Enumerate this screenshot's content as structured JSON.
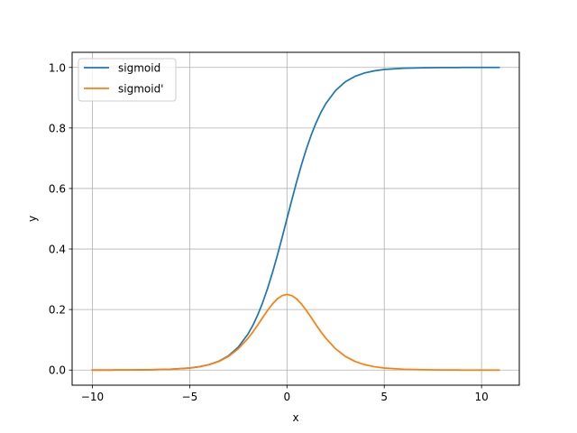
{
  "chart_data": {
    "type": "line",
    "title": "",
    "xlabel": "x",
    "ylabel": "y",
    "xlim": [
      -11.04,
      11.94
    ],
    "ylim": [
      -0.05,
      1.05
    ],
    "grid": true,
    "legend_position": "top-left",
    "x_ticks": [
      {
        "value": -10,
        "label": "−10"
      },
      {
        "value": -5,
        "label": "−5"
      },
      {
        "value": 0,
        "label": "0"
      },
      {
        "value": 5,
        "label": "5"
      },
      {
        "value": 10,
        "label": "10"
      }
    ],
    "y_ticks": [
      {
        "value": 0.0,
        "label": "0.0"
      },
      {
        "value": 0.2,
        "label": "0.2"
      },
      {
        "value": 0.4,
        "label": "0.4"
      },
      {
        "value": 0.6,
        "label": "0.6"
      },
      {
        "value": 0.8,
        "label": "0.8"
      },
      {
        "value": 1.0,
        "label": "1.0"
      }
    ],
    "x": [
      -10,
      -9,
      -8,
      -7,
      -6,
      -5,
      -4.5,
      -4,
      -3.5,
      -3,
      -2.5,
      -2,
      -1.75,
      -1.5,
      -1.25,
      -1,
      -0.75,
      -0.5,
      -0.25,
      0,
      0.25,
      0.5,
      0.75,
      1,
      1.25,
      1.5,
      1.75,
      2,
      2.5,
      3,
      3.5,
      4,
      4.5,
      5,
      6,
      7,
      8,
      9,
      10,
      10.9
    ],
    "series": [
      {
        "name": "sigmoid",
        "color": "#1f77b4",
        "values": [
          0.0,
          0.0001,
          0.0003,
          0.0009,
          0.0025,
          0.0067,
          0.011,
          0.018,
          0.0293,
          0.0474,
          0.0759,
          0.1192,
          0.148,
          0.1824,
          0.2227,
          0.2689,
          0.3208,
          0.3775,
          0.4378,
          0.5,
          0.5622,
          0.6225,
          0.6792,
          0.7311,
          0.7773,
          0.8176,
          0.852,
          0.8808,
          0.9241,
          0.9526,
          0.9707,
          0.982,
          0.989,
          0.9933,
          0.9975,
          0.9991,
          0.9997,
          0.9999,
          1.0,
          1.0
        ]
      },
      {
        "name": "sigmoid'",
        "color": "#ff7f0e",
        "values": [
          0.0,
          0.0001,
          0.0003,
          0.0009,
          0.0025,
          0.0066,
          0.0109,
          0.0177,
          0.0285,
          0.0452,
          0.0701,
          0.105,
          0.1261,
          0.1491,
          0.1731,
          0.1966,
          0.2179,
          0.235,
          0.2461,
          0.25,
          0.2461,
          0.235,
          0.2179,
          0.1966,
          0.1731,
          0.1491,
          0.1261,
          0.105,
          0.0701,
          0.0452,
          0.0285,
          0.0177,
          0.0109,
          0.0066,
          0.0025,
          0.0009,
          0.0003,
          0.0001,
          0.0,
          0.0
        ]
      }
    ]
  }
}
